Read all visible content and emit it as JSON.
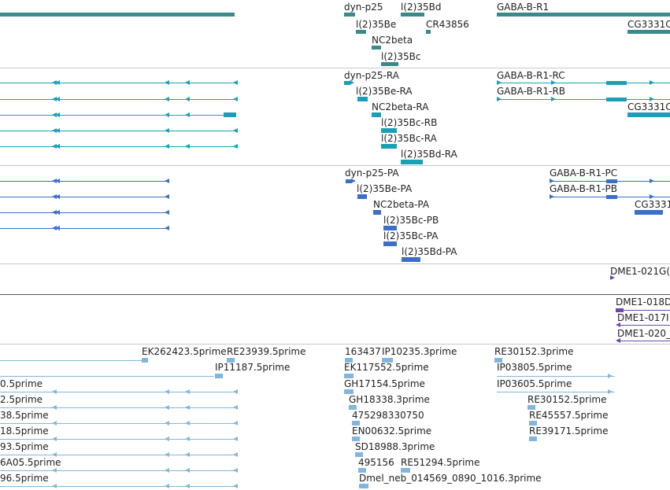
{
  "colors": {
    "gene": "#3a8a8a",
    "transcript": "#1a9fb8",
    "protein": "#3b6fc9",
    "purple": "#6b4aa8",
    "est": "#7fb7df",
    "separator": "#c8c8c8"
  },
  "tracks": {
    "genes": [
      {
        "label": "dyn-p25"
      },
      {
        "label": "l(2)35Bd"
      },
      {
        "label": "GABA-B-R1"
      },
      {
        "label": "l(2)35Be"
      },
      {
        "label": "CR43856"
      },
      {
        "label": "CG3331C"
      },
      {
        "label": "NC2beta"
      },
      {
        "label": "l(2)35Bc"
      }
    ],
    "transcripts": [
      {
        "label": "dyn-p25-RA"
      },
      {
        "label": "GABA-B-R1-RC"
      },
      {
        "label": "l(2)35Be-RA"
      },
      {
        "label": "GABA-B-R1-RB"
      },
      {
        "label": "NC2beta-RA"
      },
      {
        "label": "CG3331C"
      },
      {
        "label": "l(2)35Bc-RB"
      },
      {
        "label": "l(2)35Bc-RA"
      },
      {
        "label": "l(2)35Bd-RA"
      }
    ],
    "proteins": [
      {
        "label": "dyn-p25-PA"
      },
      {
        "label": "GABA-B-R1-PC"
      },
      {
        "label": "l(2)35Be-PA"
      },
      {
        "label": "GABA-B-R1-PB"
      },
      {
        "label": "NC2beta-PA"
      },
      {
        "label": "CG3331"
      },
      {
        "label": "l(2)35Bc-PB"
      },
      {
        "label": "l(2)35Bc-PA"
      },
      {
        "label": "l(2)35Bd-PA"
      }
    ],
    "dme_single": [
      {
        "label": "DME1-021G("
      }
    ],
    "dme_multi": [
      {
        "label": "DME1-018D"
      },
      {
        "label": "DME1-017I"
      },
      {
        "label": "DME1-020_"
      }
    ],
    "ests": [
      {
        "label": "EK262423.5prime"
      },
      {
        "label": "RE23939.5prime"
      },
      {
        "label": "163437"
      },
      {
        "label": "IP10235.3prime"
      },
      {
        "label": "RE30152.3prime"
      },
      {
        "label": "IP11187.5prime"
      },
      {
        "label": "EK117552.5prime"
      },
      {
        "label": "IP03805.5prime"
      },
      {
        "label": "0.5prime"
      },
      {
        "label": "GH17154.5prime"
      },
      {
        "label": "IP03605.5prime"
      },
      {
        "label": "2.5prime"
      },
      {
        "label": "GH18338.3prime"
      },
      {
        "label": "RE30152.5prime"
      },
      {
        "label": "38.5prime"
      },
      {
        "label": "475298330750"
      },
      {
        "label": "RE45557.5prime"
      },
      {
        "label": "18.5prime"
      },
      {
        "label": "EN00632.5prime"
      },
      {
        "label": "RE39171.5prime"
      },
      {
        "label": "93.5prime"
      },
      {
        "label": "SD18988.3prime"
      },
      {
        "label": "6A05.5prime"
      },
      {
        "label": "495156"
      },
      {
        "label": "RE51294.5prime"
      },
      {
        "label": "96.5prime"
      },
      {
        "label": "Dmel_neb_014569_0890_1016.3prime"
      }
    ]
  }
}
